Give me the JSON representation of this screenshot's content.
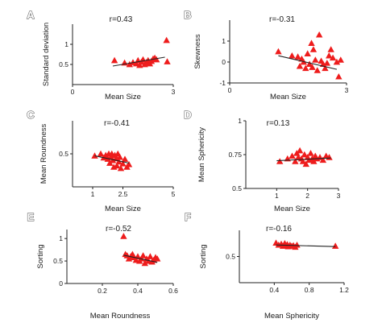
{
  "colors": {
    "marker": "#ee1c1c",
    "axis": "#222222",
    "trend": "#222222"
  },
  "chart_data": [
    {
      "panel": "A",
      "type": "scatter",
      "annotation": "r=0.43",
      "xlabel": "Mean Size",
      "ylabel": "Standard deviation",
      "xlim": [
        0,
        3
      ],
      "ylim": [
        0,
        1.5
      ],
      "xticks": [
        {
          "v": 0,
          "label": "0"
        },
        {
          "v": 3,
          "label": "3"
        }
      ],
      "yticks": [
        {
          "v": 0.5,
          "label": "0.5"
        },
        {
          "v": 1.0,
          "label": "1"
        }
      ],
      "trend": [
        [
          1.2,
          0.46
        ],
        [
          2.75,
          0.68
        ]
      ],
      "points": [
        [
          1.25,
          0.6
        ],
        [
          1.55,
          0.54
        ],
        [
          1.7,
          0.5
        ],
        [
          1.8,
          0.55
        ],
        [
          1.9,
          0.52
        ],
        [
          1.95,
          0.6
        ],
        [
          2.0,
          0.48
        ],
        [
          2.05,
          0.56
        ],
        [
          2.1,
          0.62
        ],
        [
          2.15,
          0.5
        ],
        [
          2.2,
          0.55
        ],
        [
          2.25,
          0.6
        ],
        [
          2.3,
          0.52
        ],
        [
          2.35,
          0.58
        ],
        [
          2.4,
          0.64
        ],
        [
          2.45,
          0.66
        ],
        [
          2.5,
          0.62
        ],
        [
          2.8,
          1.1
        ],
        [
          2.82,
          0.57
        ]
      ]
    },
    {
      "panel": "B",
      "type": "scatter",
      "annotation": "r=-0.31",
      "xlabel": "Mean Size",
      "ylabel": "Skewness",
      "xlim": [
        0,
        3
      ],
      "ylim": [
        -1,
        2
      ],
      "xticks": [
        {
          "v": 0,
          "label": "0"
        },
        {
          "v": 3,
          "label": "3"
        }
      ],
      "yticks": [
        {
          "v": -1,
          "label": "-1"
        },
        {
          "v": 0,
          "label": "0"
        },
        {
          "v": 1,
          "label": "1"
        }
      ],
      "trend": [
        [
          1.25,
          0.3
        ],
        [
          2.75,
          -0.35
        ]
      ],
      "points": [
        [
          1.25,
          0.5
        ],
        [
          1.6,
          0.3
        ],
        [
          1.75,
          0.25
        ],
        [
          1.8,
          -0.2
        ],
        [
          1.85,
          0.15
        ],
        [
          1.9,
          0.0
        ],
        [
          1.95,
          -0.3
        ],
        [
          2.0,
          0.4
        ],
        [
          2.05,
          -0.1
        ],
        [
          2.1,
          0.9
        ],
        [
          2.12,
          -0.25
        ],
        [
          2.15,
          0.6
        ],
        [
          2.2,
          0.1
        ],
        [
          2.25,
          -0.4
        ],
        [
          2.3,
          1.3
        ],
        [
          2.35,
          0.05
        ],
        [
          2.4,
          -0.1
        ],
        [
          2.45,
          -0.3
        ],
        [
          2.5,
          -0.05
        ],
        [
          2.55,
          0.3
        ],
        [
          2.6,
          0.6
        ],
        [
          2.65,
          0.2
        ],
        [
          2.75,
          0.0
        ],
        [
          2.8,
          -0.7
        ],
        [
          2.85,
          0.1
        ]
      ]
    },
    {
      "panel": "C",
      "type": "scatter",
      "annotation": "r=-0.41",
      "xlabel": "Mean Size",
      "ylabel": "Mean Roundness",
      "xlim": [
        0,
        5
      ],
      "ylim": [
        0,
        1
      ],
      "xticks": [
        {
          "v": 1,
          "label": "1"
        },
        {
          "v": 2.5,
          "label": "2.5"
        },
        {
          "v": 5,
          "label": "5"
        }
      ],
      "yticks": [
        {
          "v": 0.5,
          "label": "0.5"
        }
      ],
      "trend": [
        [
          1.1,
          0.47
        ],
        [
          2.8,
          0.36
        ]
      ],
      "points": [
        [
          1.1,
          0.47
        ],
        [
          1.4,
          0.5
        ],
        [
          1.55,
          0.44
        ],
        [
          1.65,
          0.48
        ],
        [
          1.75,
          0.42
        ],
        [
          1.8,
          0.5
        ],
        [
          1.85,
          0.36
        ],
        [
          1.9,
          0.45
        ],
        [
          1.95,
          0.5
        ],
        [
          2.0,
          0.4
        ],
        [
          2.05,
          0.3
        ],
        [
          2.1,
          0.48
        ],
        [
          2.15,
          0.43
        ],
        [
          2.2,
          0.32
        ],
        [
          2.25,
          0.5
        ],
        [
          2.3,
          0.38
        ],
        [
          2.35,
          0.45
        ],
        [
          2.4,
          0.28
        ],
        [
          2.5,
          0.35
        ],
        [
          2.6,
          0.42
        ],
        [
          2.7,
          0.3
        ],
        [
          2.8,
          0.34
        ]
      ]
    },
    {
      "panel": "D",
      "type": "scatter",
      "annotation": "r=0.13",
      "xlabel": "Mean Size",
      "ylabel": "Mean Sphericity",
      "xlim": [
        0,
        3
      ],
      "ylim": [
        0.5,
        1
      ],
      "xticks": [
        {
          "v": 1,
          "label": "1"
        },
        {
          "v": 2,
          "label": "2"
        },
        {
          "v": 3,
          "label": "3"
        }
      ],
      "yticks": [
        {
          "v": 0.5,
          "label": "0.5"
        },
        {
          "v": 0.75,
          "label": "0.75"
        },
        {
          "v": 1.0,
          "label": "1"
        }
      ],
      "trend": [
        [
          1.0,
          0.705
        ],
        [
          2.75,
          0.725
        ]
      ],
      "points": [
        [
          1.1,
          0.7
        ],
        [
          1.35,
          0.72
        ],
        [
          1.5,
          0.74
        ],
        [
          1.6,
          0.7
        ],
        [
          1.65,
          0.76
        ],
        [
          1.7,
          0.73
        ],
        [
          1.75,
          0.78
        ],
        [
          1.8,
          0.72
        ],
        [
          1.85,
          0.7
        ],
        [
          1.9,
          0.75
        ],
        [
          1.95,
          0.68
        ],
        [
          2.0,
          0.73
        ],
        [
          2.05,
          0.71
        ],
        [
          2.1,
          0.76
        ],
        [
          2.15,
          0.72
        ],
        [
          2.2,
          0.7
        ],
        [
          2.25,
          0.74
        ],
        [
          2.3,
          0.72
        ],
        [
          2.4,
          0.73
        ],
        [
          2.5,
          0.71
        ],
        [
          2.6,
          0.74
        ],
        [
          2.7,
          0.73
        ]
      ]
    },
    {
      "panel": "E",
      "type": "scatter",
      "annotation": "r=-0.52",
      "xlabel": "Mean Roundness",
      "ylabel": "Sorting",
      "xlim": [
        0,
        0.6
      ],
      "ylim": [
        0,
        1.2
      ],
      "xticks": [
        {
          "v": 0.2,
          "label": "0.2"
        },
        {
          "v": 0.4,
          "label": "0.4"
        },
        {
          "v": 0.6,
          "label": "0.6"
        }
      ],
      "yticks": [
        {
          "v": 0,
          "label": "0"
        },
        {
          "v": 0.5,
          "label": "0.5"
        },
        {
          "v": 1.0,
          "label": "1"
        }
      ],
      "trend": [
        [
          0.32,
          0.63
        ],
        [
          0.51,
          0.47
        ]
      ],
      "points": [
        [
          0.32,
          1.05
        ],
        [
          0.33,
          0.65
        ],
        [
          0.34,
          0.62
        ],
        [
          0.35,
          0.55
        ],
        [
          0.36,
          0.6
        ],
        [
          0.37,
          0.65
        ],
        [
          0.38,
          0.58
        ],
        [
          0.39,
          0.52
        ],
        [
          0.4,
          0.6
        ],
        [
          0.41,
          0.5
        ],
        [
          0.42,
          0.55
        ],
        [
          0.43,
          0.62
        ],
        [
          0.44,
          0.45
        ],
        [
          0.45,
          0.55
        ],
        [
          0.46,
          0.5
        ],
        [
          0.47,
          0.6
        ],
        [
          0.48,
          0.48
        ],
        [
          0.49,
          0.52
        ],
        [
          0.5,
          0.58
        ],
        [
          0.51,
          0.55
        ]
      ]
    },
    {
      "panel": "F",
      "type": "scatter",
      "annotation": "r=-0.16",
      "xlabel": "Mean Sphericity",
      "ylabel": "Sorting",
      "xlim": [
        0,
        1.2
      ],
      "ylim": [
        0,
        1
      ],
      "xticks": [
        {
          "v": 0.4,
          "label": "0.4"
        },
        {
          "v": 0.8,
          "label": "0.8"
        },
        {
          "v": 1.2,
          "label": "1.2"
        }
      ],
      "yticks": [
        {
          "v": 0.5,
          "label": "0.5"
        }
      ],
      "trend": [
        [
          0.42,
          0.72
        ],
        [
          1.1,
          0.69
        ]
      ],
      "points": [
        [
          0.42,
          0.76
        ],
        [
          0.45,
          0.72
        ],
        [
          0.48,
          0.74
        ],
        [
          0.5,
          0.7
        ],
        [
          0.52,
          0.75
        ],
        [
          0.54,
          0.71
        ],
        [
          0.55,
          0.73
        ],
        [
          0.56,
          0.69
        ],
        [
          0.58,
          0.72
        ],
        [
          0.6,
          0.7
        ],
        [
          0.62,
          0.71
        ],
        [
          0.64,
          0.68
        ],
        [
          0.66,
          0.72
        ],
        [
          1.1,
          0.7
        ]
      ]
    }
  ]
}
